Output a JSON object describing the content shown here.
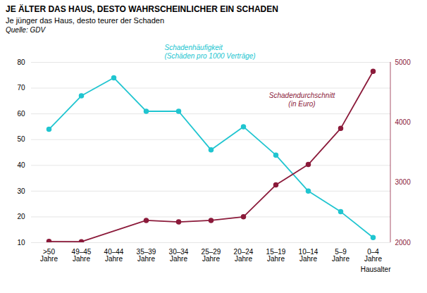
{
  "chart_data": {
    "type": "line",
    "title": "JE ÄLTER DAS HAUS, DESTO WAHRSCHEINLICHER EIN SCHADEN",
    "subtitle": "Je jünger das Haus, desto teurer der Schaden",
    "source": "Quelle: GDV",
    "xlabel": "Hausalter",
    "categories": [
      ">50\nJahre",
      "49–45\nJahre",
      "40–44\nJahre",
      "35–39\nJahre",
      "30–34\nJahre",
      "25–29\nJahre",
      "20–24\nJahre",
      "15–19\nJahre",
      "10–14\nJahre",
      "5–9\nJahre",
      "0–4\nJahre"
    ],
    "series": [
      {
        "name": "Schadenhäufigkeit\n(Schäden pro 1000 Verträge)",
        "color": "#20C5D0",
        "marker": "circle",
        "values": [
          54,
          67,
          74,
          61,
          61,
          46,
          55,
          44,
          30,
          22,
          12
        ]
      },
      {
        "name": "Schadendurchschnitt\n(in Euro)",
        "color": "#8B1A3A",
        "marker": "circle",
        "axis": "y2",
        "values": [
          2020,
          2016,
          null,
          2370,
          2345,
          2370,
          2430,
          2960,
          3300,
          3900,
          4850
        ]
      }
    ],
    "ylim": [
      10,
      80
    ],
    "yticks": [
      10,
      20,
      30,
      40,
      50,
      60,
      70,
      80
    ],
    "y2lim": [
      2000,
      5000
    ],
    "y2ticks": [
      2000,
      3000,
      4000,
      5000
    ],
    "grid": true
  }
}
